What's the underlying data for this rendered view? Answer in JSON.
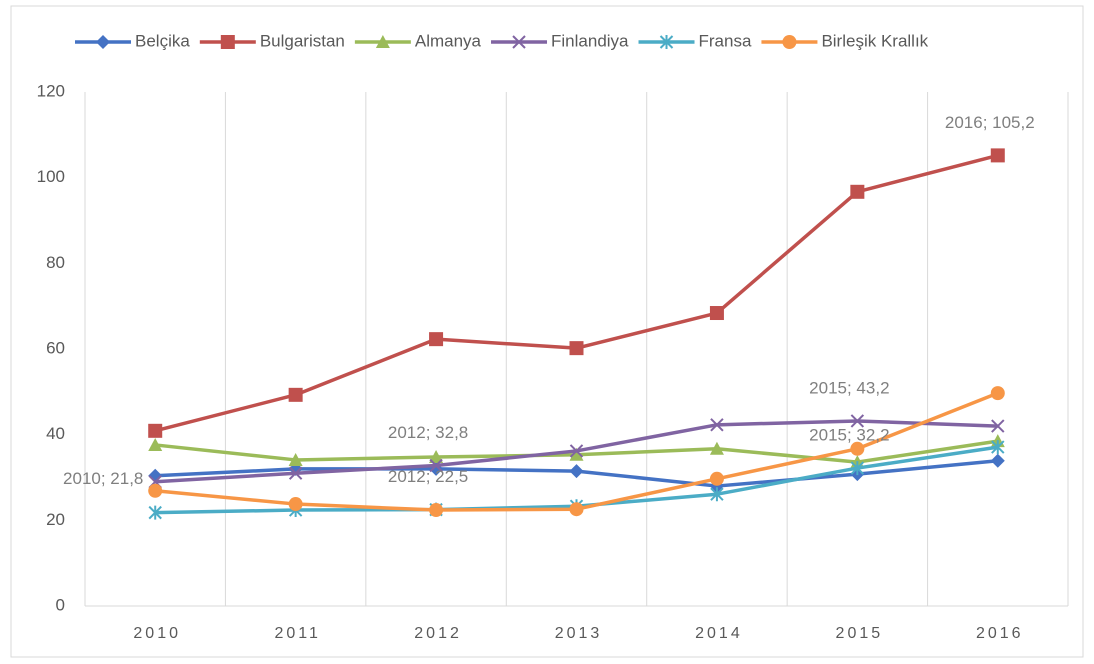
{
  "chart_data": {
    "type": "line",
    "categories": [
      "2010",
      "2011",
      "2012",
      "2013",
      "2014",
      "2015",
      "2016"
    ],
    "ylim": [
      0,
      120
    ],
    "yticks": [
      0,
      20,
      40,
      60,
      80,
      100,
      120
    ],
    "grid": true,
    "grid_axis": "x",
    "legend": "top",
    "series": [
      {
        "name": "Belçika",
        "color": "#4472c4",
        "marker": "diamond",
        "values": [
          30.4,
          32.0,
          32.0,
          31.5,
          28.0,
          30.8,
          33.9
        ]
      },
      {
        "name": "Bulgaristan",
        "color": "#c0504d",
        "marker": "square",
        "values": [
          40.9,
          49.3,
          62.3,
          60.2,
          68.4,
          96.7,
          105.2
        ],
        "value_labels": [
          null,
          null,
          null,
          null,
          null,
          null,
          "2016; 105,2"
        ]
      },
      {
        "name": "Almanya",
        "color": "#9bbb59",
        "marker": "triangle",
        "values": [
          37.6,
          34.1,
          34.8,
          35.3,
          36.7,
          33.6,
          38.5
        ]
      },
      {
        "name": "Finlandiya",
        "color": "#8064a2",
        "marker": "x",
        "values": [
          29.0,
          31.0,
          32.8,
          36.2,
          42.3,
          43.2,
          42.0
        ],
        "value_labels": [
          null,
          null,
          "2012; 32,8",
          null,
          null,
          "2015; 43,2",
          null
        ]
      },
      {
        "name": "Fransa",
        "color": "#4bacc6",
        "marker": "star",
        "values": [
          21.8,
          22.4,
          22.5,
          23.3,
          26.1,
          32.2,
          37.1
        ],
        "value_labels": [
          "2010; 21,8",
          null,
          "2012; 22,5",
          null,
          null,
          "2015; 32,2",
          null
        ]
      },
      {
        "name": "Birleşik Krallık",
        "color": "#f79646",
        "marker": "circle",
        "values": [
          26.9,
          23.8,
          22.4,
          22.6,
          29.7,
          36.7,
          49.7
        ]
      }
    ]
  }
}
